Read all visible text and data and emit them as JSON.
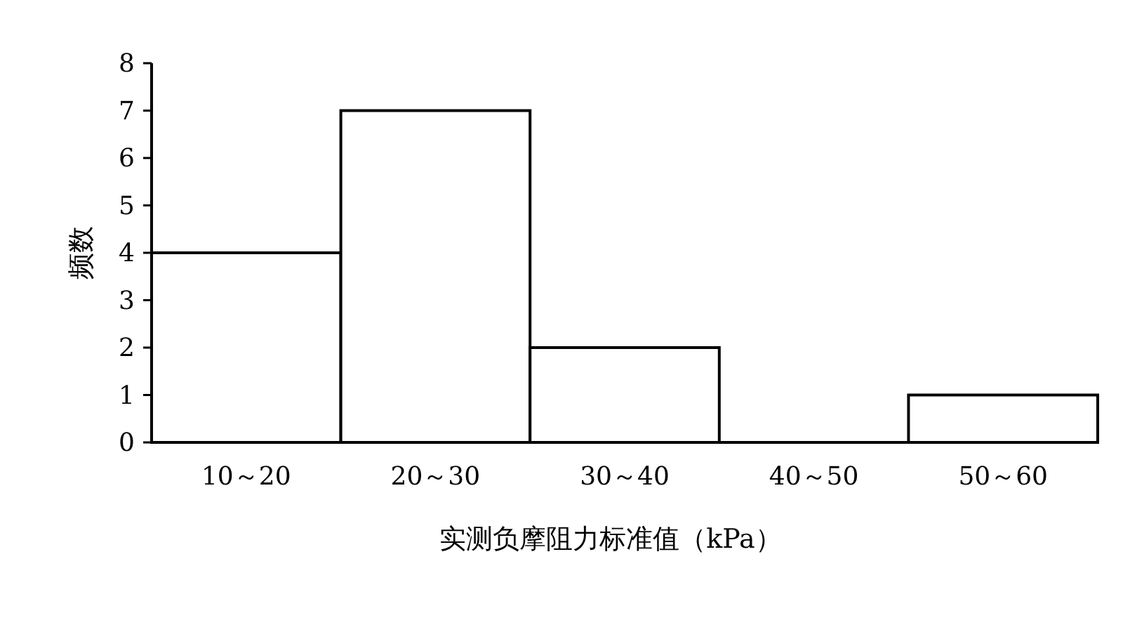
{
  "chart_data": {
    "type": "bar",
    "xlabel": "实测负摩阻力标准值（kPa）",
    "ylabel": "频数",
    "categories": [
      "10～20",
      "20～30",
      "30～40",
      "40～50",
      "50～60"
    ],
    "values": [
      4,
      7,
      2,
      0,
      1
    ],
    "color": "#ffffff",
    "ylim": [
      0,
      8
    ],
    "yticks": [
      0,
      1,
      2,
      3,
      4,
      5,
      6,
      7,
      8
    ]
  }
}
